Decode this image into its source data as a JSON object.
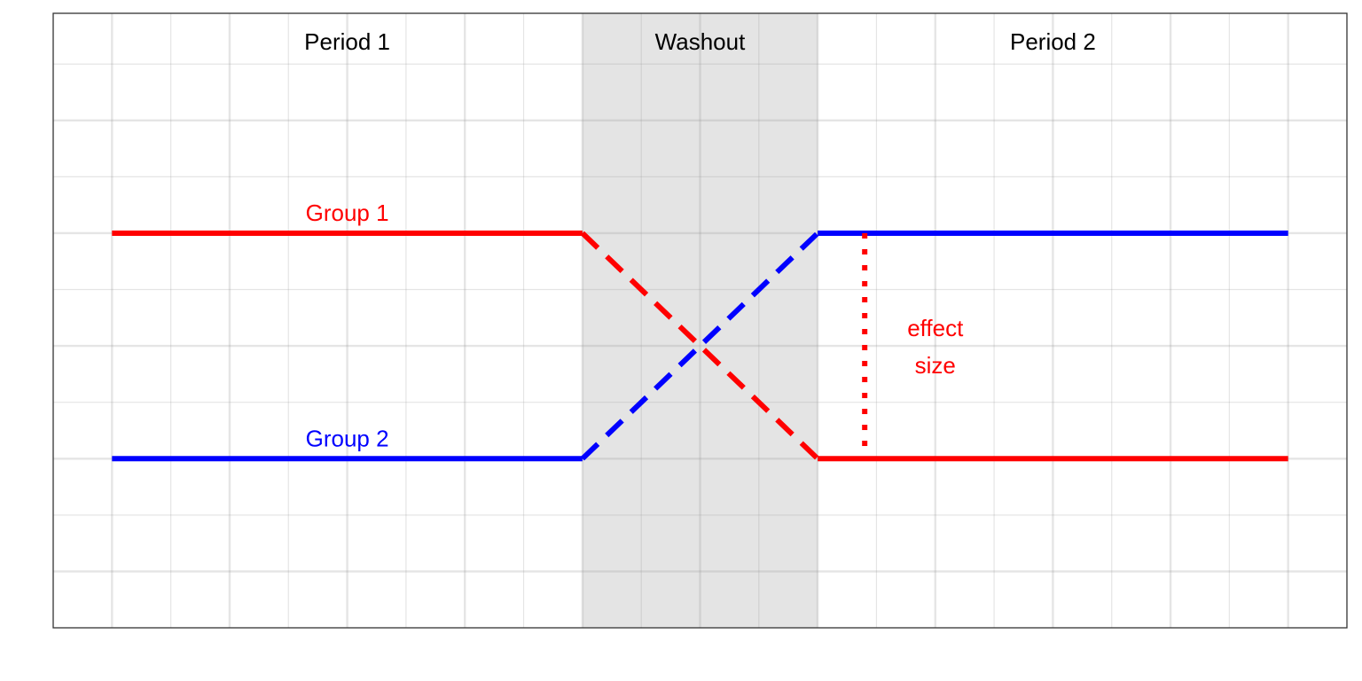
{
  "chart_data": {
    "type": "line",
    "title": "",
    "xlabel": "",
    "ylabel": "",
    "xlim": [
      -0.5,
      10.5
    ],
    "ylim": [
      -0.5,
      4.95
    ],
    "grid": true,
    "regions": [
      {
        "label": "Period 1",
        "x_center": 2,
        "shaded": false
      },
      {
        "label": "Washout",
        "x_range": [
          4,
          6
        ],
        "x_center": 5,
        "shaded": true,
        "color": "#e4e4e4"
      },
      {
        "label": "Period 2",
        "x_center": 8,
        "shaded": false
      }
    ],
    "series": [
      {
        "name": "Group 1",
        "color": "#ff0000",
        "segments": [
          {
            "style": "solid",
            "points": [
              [
                0,
                3
              ],
              [
                4,
                3
              ]
            ]
          },
          {
            "style": "dashed",
            "points": [
              [
                4,
                3
              ],
              [
                6,
                1
              ]
            ]
          },
          {
            "style": "solid",
            "points": [
              [
                6,
                1
              ],
              [
                10,
                1
              ]
            ]
          }
        ],
        "label_at": [
          2,
          3
        ]
      },
      {
        "name": "Group 2",
        "color": "#0000ff",
        "segments": [
          {
            "style": "solid",
            "points": [
              [
                0,
                1
              ],
              [
                4,
                1
              ]
            ]
          },
          {
            "style": "dashed",
            "points": [
              [
                4,
                1
              ],
              [
                6,
                3
              ]
            ]
          },
          {
            "style": "solid",
            "points": [
              [
                6,
                3
              ],
              [
                10,
                3
              ]
            ]
          }
        ],
        "label_at": [
          2,
          1
        ]
      }
    ],
    "annotation": {
      "lines": [
        "effect",
        "size"
      ],
      "color": "#ff0000",
      "style": "dotted",
      "x": 6.4,
      "y_range": [
        1,
        3
      ],
      "label_x": 7,
      "label_y": 2
    }
  }
}
